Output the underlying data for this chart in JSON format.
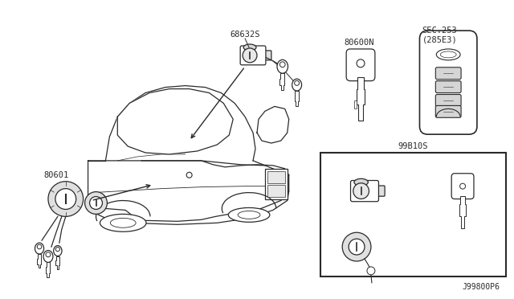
{
  "bg_color": "white",
  "line_color": "#2a2a2a",
  "text_color": "#2a2a2a",
  "labels": {
    "top_lock": "68632S",
    "left_lock": "80601",
    "blank_key": "80600N",
    "smart_key_line1": "SEC.253",
    "smart_key_line2": "(285E3)",
    "kit": "99B10S",
    "diagram_id": "J99800P6"
  },
  "figsize": [
    6.4,
    3.72
  ],
  "dpi": 100
}
